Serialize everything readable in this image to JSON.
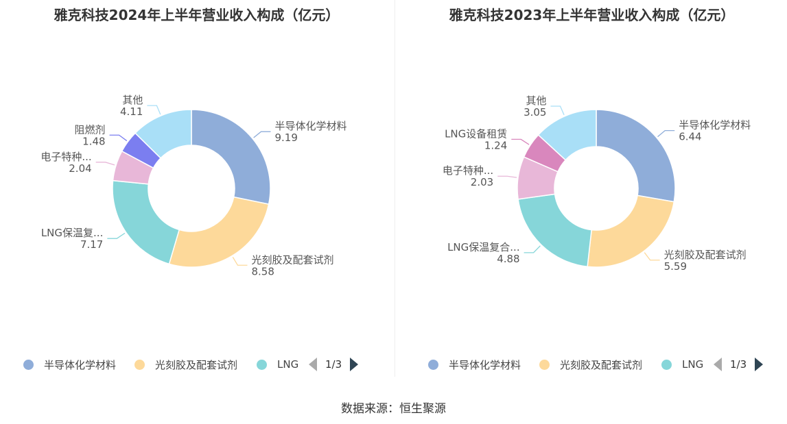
{
  "source": "数据来源：恒生聚源",
  "chart_data": [
    {
      "type": "pie",
      "title": "雅克科技2024年上半年营业收入构成（亿元）",
      "slices": [
        {
          "name": "半导体化学材料",
          "label": "半导体化学材料",
          "value": 9.19,
          "value_label": "9.19",
          "color": "#8fadd9"
        },
        {
          "name": "光刻胶及配套试剂",
          "label": "光刻胶及配套试剂",
          "value": 8.58,
          "value_label": "8.58",
          "color": "#fdd99a"
        },
        {
          "name": "LNG保温复合材料",
          "label": "LNG保温复...",
          "value": 7.17,
          "value_label": "7.17",
          "color": "#86d6d9"
        },
        {
          "name": "电子特种气体",
          "label": "电子特种...",
          "value": 2.04,
          "value_label": "2.04",
          "color": "#e8b7d8"
        },
        {
          "name": "阻燃剂",
          "label": "阻燃剂",
          "value": 1.48,
          "value_label": "1.48",
          "color": "#7b7ef0"
        },
        {
          "name": "其他",
          "label": "其他",
          "value": 4.11,
          "value_label": "4.11",
          "color": "#a9dff7"
        }
      ],
      "legend": {
        "items": [
          "半导体化学材料",
          "光刻胶及配套试剂",
          "LNG"
        ],
        "page": "1/3"
      }
    },
    {
      "type": "pie",
      "title": "雅克科技2023年上半年营业收入构成（亿元）",
      "slices": [
        {
          "name": "半导体化学材料",
          "label": "半导体化学材料",
          "value": 6.44,
          "value_label": "6.44",
          "color": "#8fadd9"
        },
        {
          "name": "光刻胶及配套试剂",
          "label": "光刻胶及配套试剂",
          "value": 5.59,
          "value_label": "5.59",
          "color": "#fdd99a"
        },
        {
          "name": "LNG保温复合材料",
          "label": "LNG保温复合...",
          "value": 4.88,
          "value_label": "4.88",
          "color": "#86d6d9"
        },
        {
          "name": "电子特种气体",
          "label": "电子特种...",
          "value": 2.03,
          "value_label": "2.03",
          "color": "#e8b7d8"
        },
        {
          "name": "LNG设备租赁",
          "label": "LNG设备租赁",
          "value": 1.24,
          "value_label": "1.24",
          "color": "#d987bd"
        },
        {
          "name": "其他",
          "label": "其他",
          "value": 3.05,
          "value_label": "3.05",
          "color": "#a9dff7"
        }
      ],
      "legend": {
        "items": [
          "半导体化学材料",
          "光刻胶及配套试剂",
          "LNG"
        ],
        "page": "1/3"
      }
    }
  ]
}
